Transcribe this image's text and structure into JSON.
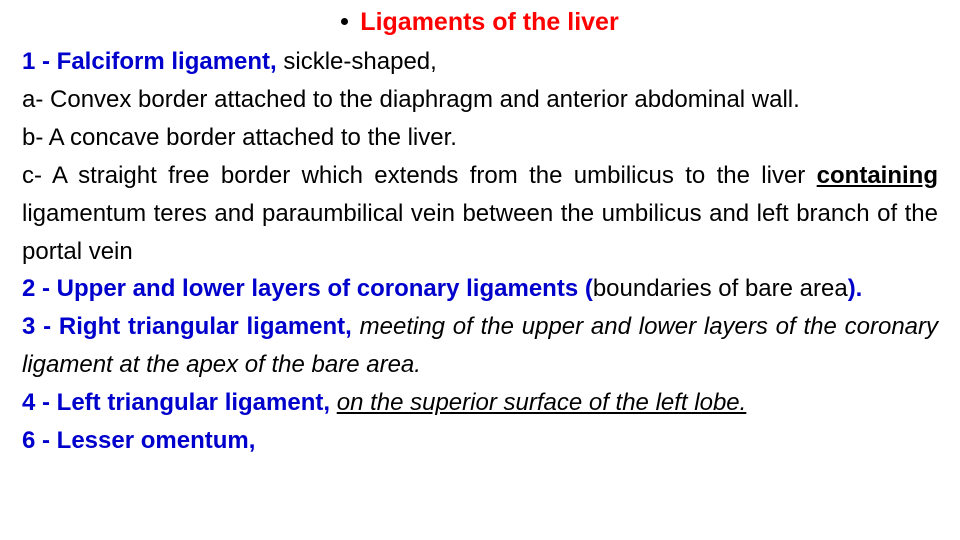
{
  "title": "Ligaments of the liver",
  "title_color": "#ff0000",
  "body_color": "#000000",
  "heading_color": "#0000cc",
  "font_family": "Arial",
  "base_font_size_pt": 18,
  "lines": {
    "h1_num": "1 - Falciform ligament, ",
    "h1_rest": "sickle-shaped,",
    "a": "a- Convex border attached to the diaphragm and anterior abdominal wall.",
    "b": "b- A concave border attached to the liver.",
    "c_part1": "c- A straight free border which extends from the umbilicus to the liver ",
    "c_bold": "containing",
    "c_part2": " ligamentum teres and paraumbilical vein between the umbilicus and left branch of the portal vein",
    "h2_num": "2 - Upper and lower layers of coronary ligaments (",
    "h2_rest": "boundaries of bare area",
    "h2_close": ").",
    "h3_num": "3 - Right triangular ligament, ",
    "h3_rest": "meeting of the upper and lower layers of the coronary ligament at the apex of the bare area.",
    "h4_num": "4 - Left triangular ligament, ",
    "h4_rest": "on the superior surface of the left lobe.",
    "h6": "6 - Lesser omentum,"
  }
}
